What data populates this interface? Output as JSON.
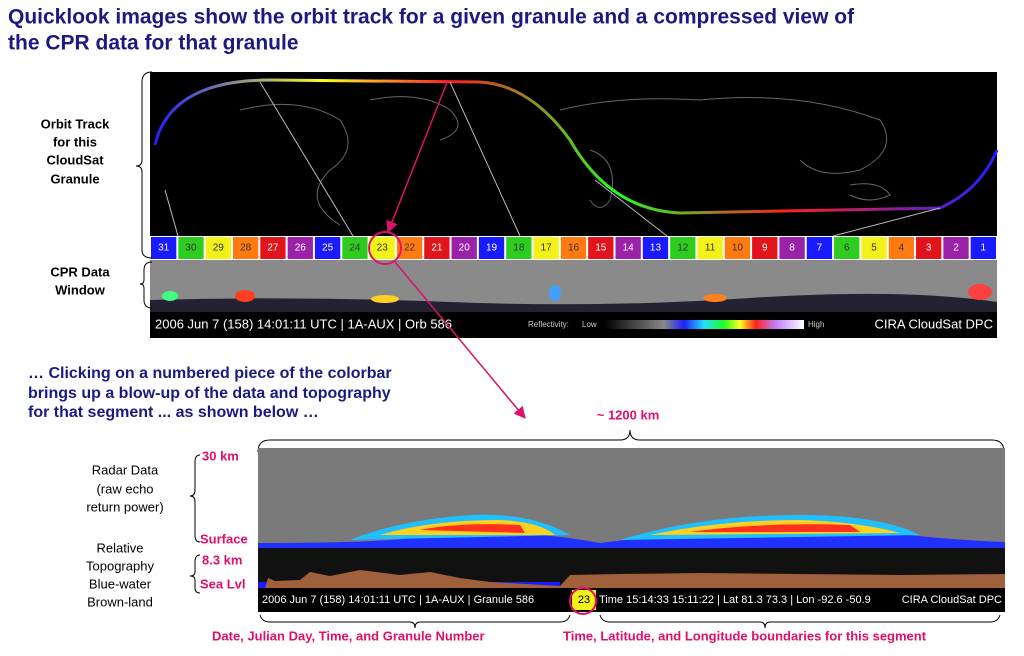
{
  "title": [
    "Quicklook images show the orbit track for a given granule and a compressed view of",
    "the CPR data for that granule"
  ],
  "quicklook": {
    "orbit_label": [
      "Orbit Track",
      "for this",
      "CloudSat",
      "Granule"
    ],
    "cpr_label": [
      "CPR Data",
      "Window"
    ],
    "segments": [
      {
        "label": "31",
        "color": "#1a1aff"
      },
      {
        "label": "30",
        "color": "#2ecc1f"
      },
      {
        "label": "29",
        "color": "#f2f21a"
      },
      {
        "label": "28",
        "color": "#ff7a10"
      },
      {
        "label": "27",
        "color": "#e0141a"
      },
      {
        "label": "26",
        "color": "#9a22a8"
      },
      {
        "label": "25",
        "color": "#1a1aff"
      },
      {
        "label": "24",
        "color": "#2ecc1f"
      },
      {
        "label": "23",
        "color": "#f2f21a"
      },
      {
        "label": "22",
        "color": "#ff7a10"
      },
      {
        "label": "21",
        "color": "#e0141a"
      },
      {
        "label": "20",
        "color": "#9a22a8"
      },
      {
        "label": "19",
        "color": "#1a1aff"
      },
      {
        "label": "18",
        "color": "#2ecc1f"
      },
      {
        "label": "17",
        "color": "#f2f21a"
      },
      {
        "label": "16",
        "color": "#ff7a10"
      },
      {
        "label": "15",
        "color": "#e0141a"
      },
      {
        "label": "14",
        "color": "#9a22a8"
      },
      {
        "label": "13",
        "color": "#1a1aff"
      },
      {
        "label": "12",
        "color": "#2ecc1f"
      },
      {
        "label": "11",
        "color": "#f2f21a"
      },
      {
        "label": "10",
        "color": "#ff7a10"
      },
      {
        "label": "9",
        "color": "#e0141a"
      },
      {
        "label": "8",
        "color": "#9a22a8"
      },
      {
        "label": "7",
        "color": "#1a1aff"
      },
      {
        "label": "6",
        "color": "#2ecc1f"
      },
      {
        "label": "5",
        "color": "#f2f21a"
      },
      {
        "label": "4",
        "color": "#ff7a10"
      },
      {
        "label": "3",
        "color": "#e0141a"
      },
      {
        "label": "2",
        "color": "#9a22a8"
      },
      {
        "label": "1",
        "color": "#1a1aff"
      }
    ],
    "status": {
      "left": "2006 Jun 7 (158) 14:01:11 UTC | 1A-AUX | Orb 586",
      "reflectivity": "Reflectivity:",
      "low": "Low",
      "high": "High",
      "right": "CIRA CloudSat DPC"
    }
  },
  "click_note": [
    "… Clicking on a numbered piece of the colorbar",
    "brings up a blow-up of the data and topography",
    "for that segment ... as shown below …"
  ],
  "blowup": {
    "width_label": "~ 1200 km",
    "radar_label": [
      "Radar Data",
      "(raw echo",
      "return power)"
    ],
    "topo_label": [
      "Relative",
      "Topography",
      "Blue-water",
      "Brown-land"
    ],
    "axis_labels": [
      "30 km",
      "Surface",
      "8.3 km",
      "Sea Lvl"
    ],
    "status": {
      "left": "2006 Jun 7 (158) 14:01:11 UTC | 1A-AUX | Granule 586",
      "segment": "23",
      "middle": "Time 15:14:33 15:11:22 | Lat 81.3 73.3 | Lon -92.6 -50.9",
      "right": "CIRA CloudSat DPC"
    },
    "captions": [
      "Date, Julian Day, Time, and Granule Number",
      "Time, Latitude, and Longitude boundaries for this segment"
    ]
  }
}
